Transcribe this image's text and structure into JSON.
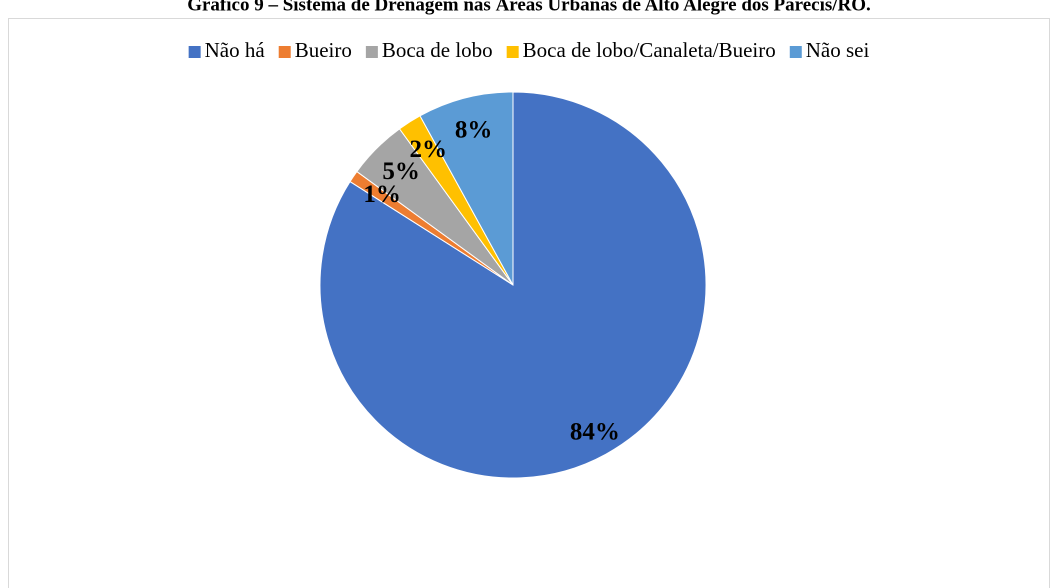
{
  "chart_data": {
    "type": "pie",
    "title": "Gráfico 9 – Sistema de Drenagem nas Áreas Urbanas de Alto Alegre dos Parecis/RO.",
    "categories": [
      "Não há",
      "Bueiro",
      "Boca de lobo",
      "Boca de lobo/Canaleta/Bueiro",
      "Não sei"
    ],
    "values": [
      84,
      1,
      5,
      2,
      8
    ],
    "value_labels": [
      "84%",
      "1%",
      "5%",
      "2%",
      "8%"
    ],
    "colors": [
      "#4472c4",
      "#ed7d31",
      "#a5a5a5",
      "#ffc000",
      "#5b9bd5"
    ],
    "legend": "top"
  }
}
